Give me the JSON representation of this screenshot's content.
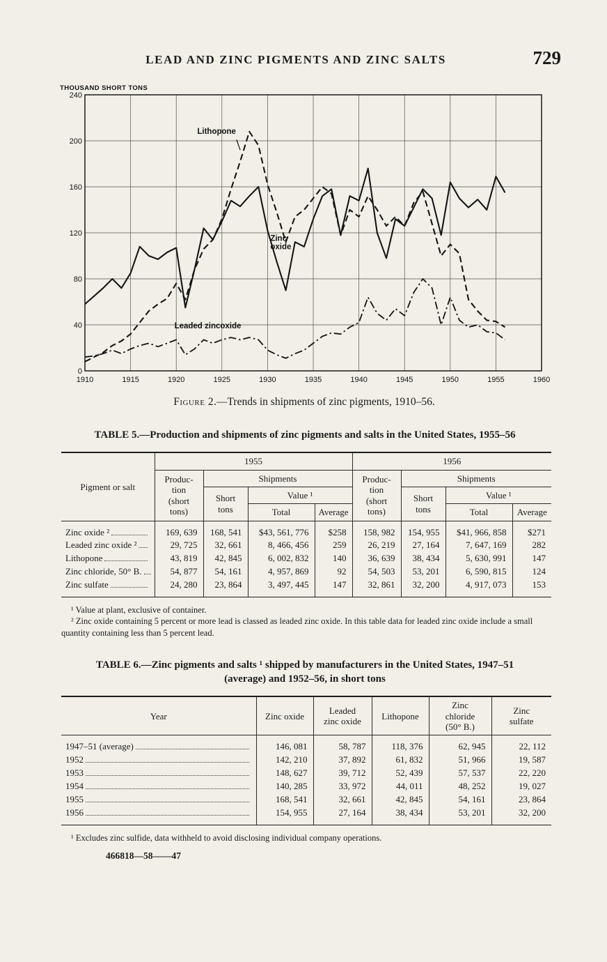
{
  "page": {
    "header_title": "LEAD AND ZINC PIGMENTS AND ZINC SALTS",
    "page_number": "729",
    "print_code": "466818—58——47"
  },
  "figure": {
    "caption_label": "Figure 2",
    "caption_rest": ".—Trends in shipments of zinc pigments, 1910–56."
  },
  "chart_data": {
    "type": "line",
    "title": "Trends in shipments of zinc pigments, 1910-56",
    "xlabel": "",
    "ylabel": "THOUSAND SHORT TONS",
    "xlim": [
      1910,
      1960
    ],
    "ylim": [
      0,
      240
    ],
    "x_ticks": [
      1910,
      1915,
      1920,
      1925,
      1930,
      1935,
      1940,
      1945,
      1950,
      1955,
      1960
    ],
    "y_ticks": [
      0,
      40,
      80,
      120,
      160,
      200,
      240
    ],
    "grid": true,
    "x": [
      1910,
      1911,
      1912,
      1913,
      1914,
      1915,
      1916,
      1917,
      1918,
      1919,
      1920,
      1921,
      1922,
      1923,
      1924,
      1925,
      1926,
      1927,
      1928,
      1929,
      1930,
      1931,
      1932,
      1933,
      1934,
      1935,
      1936,
      1937,
      1938,
      1939,
      1940,
      1941,
      1942,
      1943,
      1944,
      1945,
      1946,
      1947,
      1948,
      1949,
      1950,
      1951,
      1952,
      1953,
      1954,
      1955,
      1956
    ],
    "series": [
      {
        "name": "Lithopone",
        "css": "dashed",
        "values": [
          8,
          12,
          16,
          22,
          26,
          32,
          42,
          52,
          58,
          63,
          76,
          62,
          88,
          106,
          114,
          132,
          158,
          182,
          208,
          196,
          162,
          138,
          112,
          134,
          140,
          150,
          160,
          154,
          118,
          140,
          134,
          152,
          140,
          126,
          134,
          126,
          146,
          156,
          128,
          100,
          110,
          102,
          62,
          52,
          44,
          43,
          38
        ]
      },
      {
        "name": "Zinc oxide",
        "css": "solid",
        "values": [
          58,
          65,
          72,
          80,
          72,
          85,
          108,
          100,
          97,
          103,
          107,
          55,
          88,
          124,
          114,
          130,
          148,
          143,
          152,
          160,
          122,
          95,
          70,
          112,
          108,
          132,
          152,
          158,
          118,
          152,
          148,
          176,
          120,
          98,
          132,
          126,
          142,
          158,
          150,
          118,
          164,
          150,
          142,
          149,
          140,
          169,
          155
        ]
      },
      {
        "name": "Leaded zinc oxide",
        "css": "dashdot",
        "values": [
          12,
          13,
          15,
          18,
          15,
          19,
          22,
          24,
          21,
          24,
          27,
          14,
          19,
          27,
          24,
          27,
          29,
          27,
          29,
          27,
          18,
          14,
          11,
          15,
          18,
          24,
          30,
          33,
          32,
          38,
          42,
          64,
          50,
          44,
          54,
          48,
          68,
          80,
          72,
          40,
          64,
          44,
          38,
          40,
          34,
          33,
          27
        ]
      }
    ],
    "labels": [
      {
        "x": 1922.3,
        "y": 206,
        "lines": [
          "Lithopone"
        ],
        "tip": [
          1926.6,
          201,
          1927.0,
          192
        ]
      },
      {
        "x": 1930.3,
        "y": 113,
        "lines": [
          "Zinc",
          "oxide"
        ]
      },
      {
        "x": 1919.8,
        "y": 37,
        "lines": [
          "Leaded zincoxide"
        ]
      }
    ]
  },
  "table5": {
    "title": "TABLE 5.—Production and shipments of zinc pigments and salts in the United States, 1955–56",
    "col_pigment": "Pigment or salt",
    "year1": "1955",
    "year2": "1956",
    "production": "Produc-\ntion\n(short\ntons)",
    "shipments": "Shipments",
    "short_tons": "Short\ntons",
    "value": "Value ¹",
    "total": "Total",
    "average": "Average",
    "rows": [
      {
        "label": "Zinc oxide ²",
        "v": [
          "169, 639",
          "168, 541",
          "$43, 561, 776",
          "$258",
          "158, 982",
          "154, 955",
          "$41, 966, 858",
          "$271"
        ]
      },
      {
        "label": "Leaded zinc oxide ²",
        "v": [
          "29, 725",
          "32, 661",
          "8, 466, 456",
          "259",
          "26, 219",
          "27, 164",
          "7, 647, 169",
          "282"
        ]
      },
      {
        "label": "Lithopone",
        "v": [
          "43, 819",
          "42, 845",
          "6, 002, 832",
          "140",
          "36, 639",
          "38, 434",
          "5, 630, 991",
          "147"
        ]
      },
      {
        "label": "Zinc chloride, 50° B.",
        "v": [
          "54, 877",
          "54, 161",
          "4, 957, 869",
          "92",
          "54, 503",
          "53, 201",
          "6, 590, 815",
          "124"
        ]
      },
      {
        "label": "Zinc sulfate",
        "v": [
          "24, 280",
          "23, 864",
          "3, 497, 445",
          "147",
          "32, 861",
          "32, 200",
          "4, 917, 073",
          "153"
        ]
      }
    ],
    "footnotes": [
      "¹ Value at plant, exclusive of container.",
      "² Zinc oxide containing 5 percent or more lead is classed as leaded zinc oxide.  In this table data for leaded zinc oxide include a small quantity containing less than 5 percent lead."
    ]
  },
  "table6": {
    "title": "TABLE 6.—Zinc pigments and salts ¹ shipped by manufacturers in the United States, 1947–51 (average) and 1952–56, in short tons",
    "headers": [
      "Year",
      "Zinc oxide",
      "Leaded\nzinc oxide",
      "Lithopone",
      "Zinc\nchloride\n(50° B.)",
      "Zinc\nsulfate"
    ],
    "rows": [
      {
        "label": "1947–51 (average)",
        "v": [
          "146, 081",
          "58, 787",
          "118, 376",
          "62, 945",
          "22, 112"
        ]
      },
      {
        "label": "1952",
        "v": [
          "142, 210",
          "37, 892",
          "61, 832",
          "51, 966",
          "19, 587"
        ]
      },
      {
        "label": "1953",
        "v": [
          "148, 627",
          "39, 712",
          "52, 439",
          "57, 537",
          "22, 220"
        ]
      },
      {
        "label": "1954",
        "v": [
          "140, 285",
          "33, 972",
          "44, 011",
          "48, 252",
          "19, 027"
        ]
      },
      {
        "label": "1955",
        "v": [
          "168, 541",
          "32, 661",
          "42, 845",
          "54, 161",
          "23, 864"
        ]
      },
      {
        "label": "1956",
        "v": [
          "154, 955",
          "27, 164",
          "38, 434",
          "53, 201",
          "32, 200"
        ]
      }
    ],
    "footnote": "¹ Excludes zinc sulfide, data withheld to avoid disclosing individual company operations."
  }
}
